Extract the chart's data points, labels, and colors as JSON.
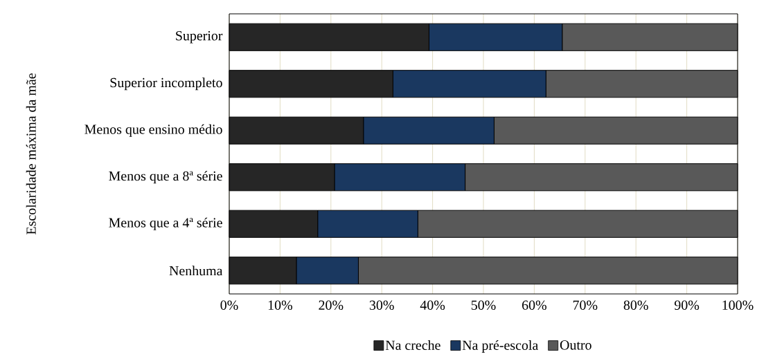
{
  "chart_data": {
    "type": "bar",
    "orientation": "horizontal",
    "stacked": true,
    "ylabel": "Escolaridade máxima da mãe",
    "categories": [
      "Superior",
      "Superior incompleto",
      "Menos que ensino médio",
      "Menos que a 8ª série",
      "Menos que a 4ª série",
      "Nenhuma"
    ],
    "series": [
      {
        "name": "Na creche",
        "color": "#262626",
        "values": [
          39.3,
          32.2,
          26.4,
          20.7,
          17.4,
          13.2
        ]
      },
      {
        "name": "Na pré-escola",
        "color": "#1a3860",
        "values": [
          26.2,
          30.1,
          25.7,
          25.7,
          19.7,
          12.2
        ]
      },
      {
        "name": "Outro",
        "color": "#595959",
        "values": [
          34.5,
          37.7,
          47.9,
          53.6,
          62.9,
          74.6
        ]
      }
    ],
    "xlim": [
      0,
      100
    ],
    "xticks": [
      {
        "value": 0,
        "label": "0%"
      },
      {
        "value": 10,
        "label": "10%"
      },
      {
        "value": 20,
        "label": "20%"
      },
      {
        "value": 30,
        "label": "30%"
      },
      {
        "value": 40,
        "label": "40%"
      },
      {
        "value": 50,
        "label": "50%"
      },
      {
        "value": 60,
        "label": "60%"
      },
      {
        "value": 70,
        "label": "70%"
      },
      {
        "value": 80,
        "label": "80%"
      },
      {
        "value": 90,
        "label": "90%"
      },
      {
        "value": 100,
        "label": "100%"
      }
    ],
    "grid": "x",
    "legend": "bottom"
  }
}
